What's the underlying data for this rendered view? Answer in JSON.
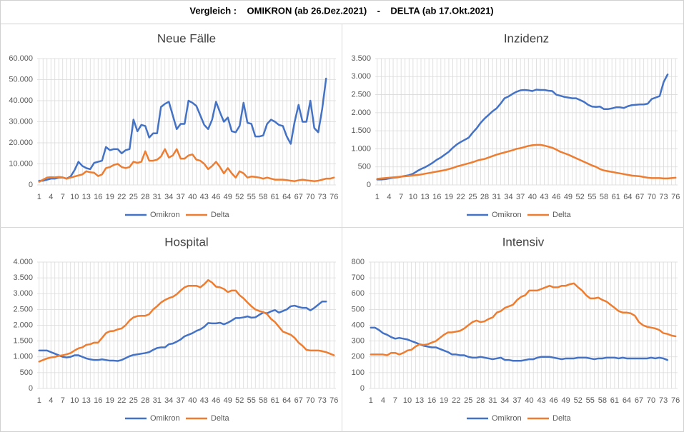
{
  "title": "Vergleich :    OMIKRON (ab 26.Dez.2021)    -    DELTA (ab 17.Okt.2021)",
  "chart_data": [
    {
      "type": "line",
      "title": "Neue Fälle",
      "x": [
        1,
        2,
        3,
        4,
        5,
        6,
        7,
        8,
        9,
        10,
        11,
        12,
        13,
        14,
        15,
        16,
        17,
        18,
        19,
        20,
        21,
        22,
        23,
        24,
        25,
        26,
        27,
        28,
        29,
        30,
        31,
        32,
        33,
        34,
        35,
        36,
        37,
        38,
        39,
        40,
        41,
        42,
        43,
        44,
        45,
        46,
        47,
        48,
        49,
        50,
        51,
        52,
        53,
        54,
        55,
        56,
        57,
        58,
        59,
        60,
        61,
        62,
        63,
        64,
        65,
        66,
        67,
        68,
        69,
        70,
        71,
        72,
        73,
        74,
        75,
        76
      ],
      "xlim": [
        0.5,
        76.5
      ],
      "xticks": [
        1,
        4,
        7,
        10,
        13,
        16,
        19,
        22,
        25,
        28,
        31,
        34,
        37,
        40,
        43,
        46,
        49,
        52,
        55,
        58,
        61,
        64,
        67,
        70,
        73,
        76
      ],
      "ylim": [
        0,
        60000
      ],
      "yticks": [
        0,
        {
          "value": 10000,
          "label": "10.000"
        },
        {
          "value": 20000,
          "label": "20.000"
        },
        {
          "value": 30000,
          "label": "30.000"
        },
        {
          "value": 40000,
          "label": "40.000"
        },
        {
          "value": 50000,
          "label": "50.000"
        },
        {
          "value": 60000,
          "label": "60.000"
        }
      ],
      "grid": true,
      "legend": "bottom",
      "series": [
        {
          "name": "Omikron",
          "color": "#4472c4",
          "values": [
            2000,
            2000,
            2500,
            3000,
            3000,
            3500,
            3500,
            3000,
            4000,
            7000,
            11000,
            9000,
            8000,
            7500,
            10500,
            11000,
            11500,
            18000,
            16500,
            17000,
            17000,
            15000,
            16500,
            17000,
            31000,
            25500,
            28500,
            28000,
            22500,
            24500,
            24500,
            37000,
            38500,
            39500,
            33000,
            26500,
            29000,
            29000,
            40000,
            39000,
            37500,
            33000,
            28500,
            26500,
            31000,
            39500,
            34500,
            30000,
            32000,
            25500,
            25000,
            28000,
            39000,
            29500,
            29000,
            23000,
            23000,
            23500,
            29000,
            31000,
            30000,
            28500,
            28000,
            23000,
            19500,
            30000,
            38000,
            30000,
            30000,
            40000,
            27000,
            25000,
            36000,
            50500,
            null,
            null
          ]
        },
        {
          "name": "Delta",
          "color": "#ed7d31",
          "values": [
            1500,
            2500,
            3500,
            3700,
            3600,
            3800,
            3600,
            3000,
            3500,
            4000,
            4500,
            5000,
            6500,
            6000,
            5800,
            4200,
            5000,
            8000,
            8500,
            9500,
            10000,
            8500,
            8000,
            8500,
            11000,
            10500,
            11000,
            16000,
            11500,
            11500,
            12000,
            13500,
            17000,
            13000,
            14000,
            17000,
            12500,
            12500,
            14000,
            14500,
            12000,
            11500,
            10000,
            7500,
            9000,
            11000,
            8500,
            5500,
            8000,
            5500,
            3500,
            6500,
            5500,
            3500,
            4000,
            3800,
            3500,
            3000,
            3500,
            3000,
            2500,
            2500,
            2500,
            2300,
            2000,
            1800,
            2200,
            2500,
            2200,
            2000,
            1800,
            2000,
            2500,
            3000,
            3000,
            3500
          ]
        }
      ]
    },
    {
      "type": "line",
      "title": "Inzidenz",
      "x": [
        1,
        2,
        3,
        4,
        5,
        6,
        7,
        8,
        9,
        10,
        11,
        12,
        13,
        14,
        15,
        16,
        17,
        18,
        19,
        20,
        21,
        22,
        23,
        24,
        25,
        26,
        27,
        28,
        29,
        30,
        31,
        32,
        33,
        34,
        35,
        36,
        37,
        38,
        39,
        40,
        41,
        42,
        43,
        44,
        45,
        46,
        47,
        48,
        49,
        50,
        51,
        52,
        53,
        54,
        55,
        56,
        57,
        58,
        59,
        60,
        61,
        62,
        63,
        64,
        65,
        66,
        67,
        68,
        69,
        70,
        71,
        72,
        73,
        74,
        75,
        76
      ],
      "xlim": [
        0.5,
        76.5
      ],
      "xticks": [
        1,
        4,
        7,
        10,
        13,
        16,
        19,
        22,
        25,
        28,
        31,
        34,
        37,
        40,
        43,
        46,
        49,
        52,
        55,
        58,
        61,
        64,
        67,
        70,
        73,
        76
      ],
      "ylim": [
        0,
        3500
      ],
      "yticks": [
        0,
        500,
        {
          "value": 1000,
          "label": "1.000"
        },
        {
          "value": 1500,
          "label": "1.500"
        },
        {
          "value": 2000,
          "label": "2.000"
        },
        {
          "value": 2500,
          "label": "2.500"
        },
        {
          "value": 3000,
          "label": "3.000"
        },
        {
          "value": 3500,
          "label": "3.500"
        }
      ],
      "grid": true,
      "legend": "bottom",
      "series": [
        {
          "name": "Omikron",
          "color": "#4472c4",
          "values": [
            150,
            150,
            160,
            180,
            200,
            210,
            230,
            250,
            270,
            310,
            380,
            440,
            490,
            550,
            620,
            700,
            760,
            840,
            920,
            1030,
            1120,
            1190,
            1250,
            1310,
            1450,
            1570,
            1720,
            1840,
            1940,
            2040,
            2120,
            2250,
            2400,
            2450,
            2520,
            2580,
            2620,
            2630,
            2620,
            2600,
            2640,
            2630,
            2630,
            2610,
            2600,
            2500,
            2470,
            2440,
            2420,
            2400,
            2400,
            2350,
            2300,
            2220,
            2170,
            2160,
            2170,
            2100,
            2100,
            2120,
            2150,
            2150,
            2130,
            2180,
            2210,
            2220,
            2230,
            2230,
            2250,
            2380,
            2420,
            2460,
            2850,
            3060,
            null,
            null
          ]
        },
        {
          "name": "Delta",
          "color": "#ed7d31",
          "values": [
            170,
            180,
            190,
            200,
            210,
            220,
            230,
            240,
            250,
            265,
            275,
            290,
            310,
            330,
            350,
            370,
            390,
            410,
            440,
            470,
            510,
            540,
            570,
            600,
            630,
            670,
            700,
            720,
            760,
            800,
            840,
            870,
            900,
            930,
            960,
            1000,
            1020,
            1050,
            1080,
            1100,
            1110,
            1110,
            1090,
            1060,
            1030,
            980,
            920,
            880,
            840,
            790,
            740,
            690,
            640,
            590,
            540,
            500,
            440,
            400,
            380,
            360,
            340,
            320,
            300,
            280,
            260,
            250,
            240,
            220,
            200,
            190,
            190,
            190,
            180,
            180,
            190,
            200
          ]
        }
      ]
    },
    {
      "type": "line",
      "title": "Hospital",
      "x": [
        1,
        2,
        3,
        4,
        5,
        6,
        7,
        8,
        9,
        10,
        11,
        12,
        13,
        14,
        15,
        16,
        17,
        18,
        19,
        20,
        21,
        22,
        23,
        24,
        25,
        26,
        27,
        28,
        29,
        30,
        31,
        32,
        33,
        34,
        35,
        36,
        37,
        38,
        39,
        40,
        41,
        42,
        43,
        44,
        45,
        46,
        47,
        48,
        49,
        50,
        51,
        52,
        53,
        54,
        55,
        56,
        57,
        58,
        59,
        60,
        61,
        62,
        63,
        64,
        65,
        66,
        67,
        68,
        69,
        70,
        71,
        72,
        73,
        74,
        75,
        76
      ],
      "xlim": [
        0.5,
        76.5
      ],
      "xticks": [
        1,
        4,
        7,
        10,
        13,
        16,
        19,
        22,
        25,
        28,
        31,
        34,
        37,
        40,
        43,
        46,
        49,
        52,
        55,
        58,
        61,
        64,
        67,
        70,
        73,
        76
      ],
      "ylim": [
        0,
        4000
      ],
      "yticks": [
        0,
        500,
        {
          "value": 1000,
          "label": "1.000"
        },
        {
          "value": 1500,
          "label": "1.500"
        },
        {
          "value": 2000,
          "label": "2.000"
        },
        {
          "value": 2500,
          "label": "2.500"
        },
        {
          "value": 3000,
          "label": "3.000"
        },
        {
          "value": 3500,
          "label": "3.500"
        },
        {
          "value": 4000,
          "label": "4.000"
        }
      ],
      "grid": true,
      "legend": "bottom",
      "series": [
        {
          "name": "Omikron",
          "color": "#4472c4",
          "values": [
            1200,
            1200,
            1200,
            1150,
            1100,
            1050,
            1000,
            980,
            1000,
            1050,
            1050,
            1000,
            950,
            920,
            900,
            900,
            920,
            900,
            880,
            880,
            870,
            900,
            960,
            1020,
            1060,
            1080,
            1100,
            1120,
            1150,
            1220,
            1280,
            1300,
            1300,
            1400,
            1420,
            1480,
            1550,
            1650,
            1700,
            1750,
            1820,
            1870,
            1950,
            2070,
            2060,
            2060,
            2080,
            2030,
            2080,
            2150,
            2230,
            2230,
            2250,
            2280,
            2240,
            2250,
            2330,
            2400,
            2380,
            2440,
            2480,
            2400,
            2450,
            2500,
            2600,
            2620,
            2580,
            2550,
            2550,
            2470,
            2550,
            2650,
            2750,
            2750,
            null,
            null
          ]
        },
        {
          "name": "Delta",
          "color": "#ed7d31",
          "values": [
            850,
            900,
            950,
            980,
            1000,
            1030,
            1050,
            1080,
            1120,
            1200,
            1270,
            1300,
            1380,
            1400,
            1450,
            1450,
            1600,
            1750,
            1810,
            1820,
            1870,
            1900,
            2000,
            2150,
            2250,
            2290,
            2300,
            2300,
            2350,
            2500,
            2600,
            2720,
            2800,
            2860,
            2900,
            2980,
            3100,
            3200,
            3250,
            3250,
            3250,
            3200,
            3300,
            3430,
            3350,
            3220,
            3200,
            3150,
            3050,
            3100,
            3100,
            2950,
            2850,
            2720,
            2600,
            2500,
            2450,
            2420,
            2350,
            2200,
            2100,
            1950,
            1800,
            1750,
            1700,
            1600,
            1450,
            1350,
            1220,
            1200,
            1200,
            1200,
            1180,
            1150,
            1100,
            1050
          ]
        }
      ]
    },
    {
      "type": "line",
      "title": "Intensiv",
      "x": [
        1,
        2,
        3,
        4,
        5,
        6,
        7,
        8,
        9,
        10,
        11,
        12,
        13,
        14,
        15,
        16,
        17,
        18,
        19,
        20,
        21,
        22,
        23,
        24,
        25,
        26,
        27,
        28,
        29,
        30,
        31,
        32,
        33,
        34,
        35,
        36,
        37,
        38,
        39,
        40,
        41,
        42,
        43,
        44,
        45,
        46,
        47,
        48,
        49,
        50,
        51,
        52,
        53,
        54,
        55,
        56,
        57,
        58,
        59,
        60,
        61,
        62,
        63,
        64,
        65,
        66,
        67,
        68,
        69,
        70,
        71,
        72,
        73,
        74,
        75,
        76
      ],
      "xlim": [
        0.5,
        76.5
      ],
      "xticks": [
        1,
        4,
        7,
        10,
        13,
        16,
        19,
        22,
        25,
        28,
        31,
        34,
        37,
        40,
        43,
        46,
        49,
        52,
        55,
        58,
        61,
        64,
        67,
        70,
        73,
        76
      ],
      "ylim": [
        0,
        800
      ],
      "yticks": [
        0,
        100,
        200,
        300,
        400,
        500,
        600,
        700,
        800
      ],
      "grid": true,
      "legend": "bottom",
      "series": [
        {
          "name": "Omikron",
          "color": "#4472c4",
          "values": [
            385,
            385,
            370,
            350,
            340,
            325,
            315,
            320,
            315,
            310,
            300,
            290,
            280,
            270,
            265,
            260,
            260,
            250,
            240,
            230,
            215,
            215,
            210,
            210,
            200,
            195,
            195,
            200,
            195,
            190,
            185,
            190,
            195,
            180,
            180,
            175,
            175,
            175,
            180,
            185,
            185,
            195,
            200,
            200,
            200,
            195,
            190,
            185,
            190,
            190,
            190,
            195,
            195,
            195,
            190,
            185,
            190,
            190,
            195,
            195,
            195,
            190,
            195,
            190,
            190,
            190,
            190,
            190,
            190,
            195,
            190,
            195,
            190,
            180,
            null,
            null
          ]
        },
        {
          "name": "Delta",
          "color": "#ed7d31",
          "values": [
            215,
            215,
            215,
            215,
            210,
            225,
            225,
            215,
            225,
            240,
            245,
            265,
            280,
            275,
            280,
            290,
            300,
            320,
            340,
            355,
            355,
            360,
            365,
            380,
            400,
            420,
            430,
            420,
            425,
            440,
            450,
            480,
            490,
            510,
            520,
            530,
            560,
            580,
            590,
            620,
            620,
            620,
            630,
            640,
            650,
            640,
            640,
            650,
            650,
            660,
            665,
            640,
            620,
            590,
            570,
            570,
            575,
            560,
            550,
            530,
            510,
            490,
            480,
            480,
            475,
            460,
            420,
            400,
            390,
            385,
            380,
            370,
            350,
            345,
            335,
            330
          ]
        }
      ]
    }
  ]
}
